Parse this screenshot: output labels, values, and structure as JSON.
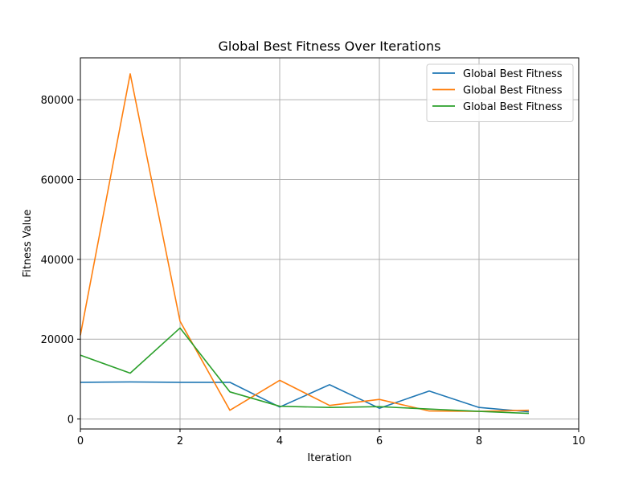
{
  "chart_data": {
    "type": "line",
    "title": "Global Best Fitness Over Iterations",
    "xlabel": "Iteration",
    "ylabel": "Fitness Value",
    "xlim": [
      0,
      10
    ],
    "ylim": [
      -2500,
      90500
    ],
    "xticks": [
      0,
      2,
      4,
      6,
      8,
      10
    ],
    "yticks": [
      0,
      20000,
      40000,
      60000,
      80000
    ],
    "grid": true,
    "legend_position": "top-right",
    "x": [
      0,
      1,
      2,
      3,
      4,
      5,
      6,
      7,
      8,
      9
    ],
    "series": [
      {
        "name": "Global Best Fitness",
        "color": "#1f77b4",
        "values": [
          9200,
          9300,
          9200,
          9200,
          3000,
          8600,
          2700,
          7000,
          2900,
          1800
        ]
      },
      {
        "name": "Global Best Fitness",
        "color": "#ff7f0e",
        "values": [
          21000,
          86500,
          24500,
          2200,
          9700,
          3400,
          4900,
          2000,
          1900,
          2200
        ]
      },
      {
        "name": "Global Best Fitness",
        "color": "#2ca02c",
        "values": [
          16000,
          11500,
          22800,
          6800,
          3200,
          2900,
          3100,
          2500,
          1900,
          1400
        ]
      }
    ]
  }
}
